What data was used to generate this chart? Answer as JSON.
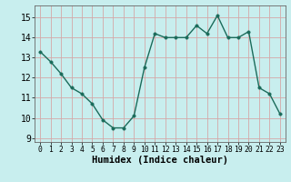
{
  "x": [
    0,
    1,
    2,
    3,
    4,
    5,
    6,
    7,
    8,
    9,
    10,
    11,
    12,
    13,
    14,
    15,
    16,
    17,
    18,
    19,
    20,
    21,
    22,
    23
  ],
  "y": [
    13.3,
    12.8,
    12.2,
    11.5,
    11.2,
    10.7,
    9.9,
    9.5,
    9.5,
    10.1,
    12.5,
    14.2,
    14.0,
    14.0,
    14.0,
    14.6,
    14.2,
    15.1,
    14.0,
    14.0,
    14.3,
    11.5,
    11.2,
    10.2
  ],
  "line_color": "#1a6b5a",
  "marker_color": "#1a6b5a",
  "bg_color": "#c8eeee",
  "grid_color": "#d4a8a8",
  "xlabel": "Humidex (Indice chaleur)",
  "ylim": [
    8.8,
    15.6
  ],
  "xlim": [
    -0.5,
    23.5
  ],
  "yticks": [
    9,
    10,
    11,
    12,
    13,
    14,
    15
  ],
  "xticks": [
    0,
    1,
    2,
    3,
    4,
    5,
    6,
    7,
    8,
    9,
    10,
    11,
    12,
    13,
    14,
    15,
    16,
    17,
    18,
    19,
    20,
    21,
    22,
    23
  ],
  "xlabel_fontsize": 7.5,
  "ytick_fontsize": 7,
  "xtick_fontsize": 5.8,
  "marker_size": 2.5,
  "line_width": 1.0
}
